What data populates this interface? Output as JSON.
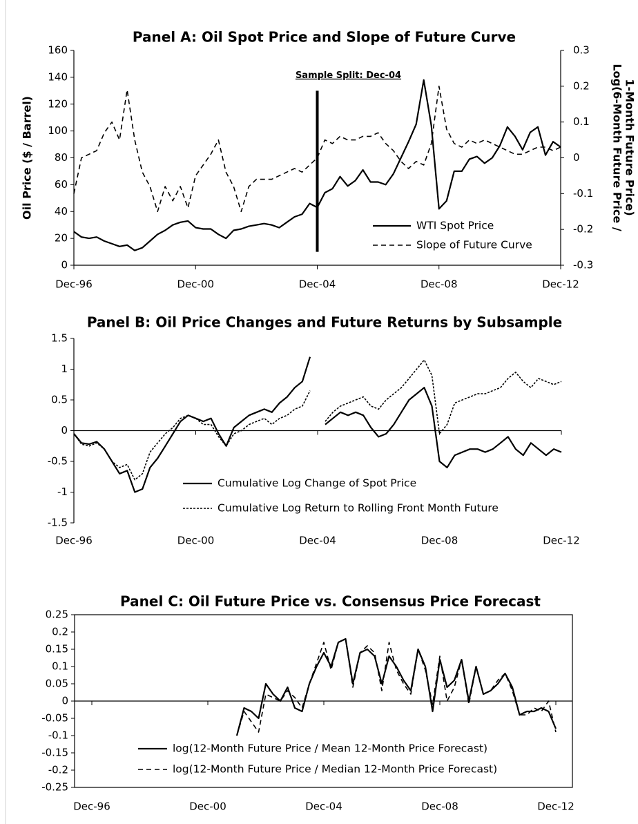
{
  "chart_data": [
    {
      "type": "line",
      "title": "Panel A: Oil Spot Price and Slope of Future Curve",
      "ylabel": "Oil Price ($ / Barrel)",
      "y2label": [
        "Log(6-Month Future Price /",
        "1-Month Future Price)"
      ],
      "categories": [
        "Dec-96",
        null,
        null,
        null,
        null,
        null,
        null,
        null,
        null,
        null,
        null,
        null,
        null,
        null,
        null,
        null,
        "Dec-00",
        null,
        null,
        null,
        null,
        null,
        null,
        null,
        null,
        null,
        null,
        null,
        null,
        null,
        null,
        null,
        "Dec-04",
        null,
        null,
        null,
        null,
        null,
        null,
        null,
        null,
        null,
        null,
        null,
        null,
        null,
        null,
        null,
        "Dec-08",
        null,
        null,
        null,
        null,
        null,
        null,
        null,
        null,
        null,
        null,
        null,
        null,
        null,
        null,
        null,
        "Dec-12"
      ],
      "ylim": [
        0,
        160
      ],
      "yticks": [
        0,
        20,
        40,
        60,
        80,
        100,
        120,
        140,
        160
      ],
      "y2lim": [
        -0.3,
        0.3
      ],
      "y2ticks": [
        -0.3,
        -0.2,
        -0.1,
        0,
        0.1,
        0.2,
        0.3
      ],
      "legend": "lower right",
      "annotation": {
        "text": "Sample Split: Dec-04",
        "at": "Dec-04",
        "from": 10,
        "to": 130
      },
      "series": [
        {
          "name": "WTI Spot Price",
          "color": "#000000",
          "style": "solid",
          "values": [
            25,
            21,
            20,
            21,
            18,
            16,
            14,
            15,
            11,
            13,
            18,
            23,
            26,
            30,
            32,
            33,
            28,
            27,
            27,
            23,
            20,
            26,
            27,
            29,
            30,
            31,
            30,
            28,
            32,
            36,
            38,
            46,
            43,
            54,
            57,
            66,
            59,
            63,
            71,
            62,
            62,
            60,
            68,
            80,
            92,
            105,
            138,
            104,
            42,
            48,
            70,
            70,
            79,
            81,
            76,
            80,
            89,
            103,
            96,
            86,
            99,
            103,
            82,
            92,
            88
          ]
        },
        {
          "name": "Slope of Future Curve",
          "color": "#000000",
          "style": "dashed",
          "axis": "y2",
          "values": [
            -0.1,
            0,
            0.01,
            0.02,
            0.07,
            0.1,
            0.05,
            0.19,
            0.05,
            -0.04,
            -0.08,
            -0.15,
            -0.08,
            -0.12,
            -0.08,
            -0.14,
            -0.05,
            -0.02,
            0.01,
            0.05,
            -0.04,
            -0.08,
            -0.15,
            -0.08,
            -0.06,
            -0.06,
            -0.06,
            -0.05,
            -0.04,
            -0.03,
            -0.04,
            -0.02,
            0,
            0.05,
            0.04,
            0.06,
            0.05,
            0.05,
            0.06,
            0.06,
            0.07,
            0.04,
            0.02,
            -0.01,
            -0.03,
            -0.01,
            -0.02,
            0.04,
            0.2,
            0.08,
            0.04,
            0.03,
            0.05,
            0.04,
            0.05,
            0.04,
            0.03,
            0.02,
            0.01,
            0.01,
            0.02,
            0.03,
            0.03,
            0.02,
            0.03
          ]
        }
      ]
    },
    {
      "type": "line",
      "title": "Panel B: Oil Price Changes and Future Returns by Subsample",
      "categories": [
        "Dec-96",
        null,
        null,
        null,
        null,
        null,
        null,
        null,
        null,
        null,
        null,
        null,
        null,
        null,
        null,
        null,
        "Dec-00",
        null,
        null,
        null,
        null,
        null,
        null,
        null,
        null,
        null,
        null,
        null,
        null,
        null,
        null,
        null,
        "Dec-04",
        null,
        null,
        null,
        null,
        null,
        null,
        null,
        null,
        null,
        null,
        null,
        null,
        null,
        null,
        null,
        "Dec-08",
        null,
        null,
        null,
        null,
        null,
        null,
        null,
        null,
        null,
        null,
        null,
        null,
        null,
        null,
        null,
        "Dec-12"
      ],
      "ylim": [
        -1.5,
        1.5
      ],
      "yticks": [
        -1.5,
        -1,
        -0.5,
        0,
        0.5,
        1,
        1.5
      ],
      "legend": "lower center",
      "series": [
        {
          "name": "Cumulative Log Change of Spot Price",
          "color": "#000000",
          "style": "solid",
          "values": [
            -0.05,
            -0.2,
            -0.22,
            -0.18,
            -0.3,
            -0.5,
            -0.7,
            -0.65,
            -1,
            -0.95,
            -0.6,
            -0.45,
            -0.25,
            -0.05,
            0.15,
            0.25,
            0.2,
            0.15,
            0.2,
            -0.05,
            -0.25,
            0.05,
            0.15,
            0.25,
            0.3,
            0.35,
            0.3,
            0.45,
            0.55,
            0.7,
            0.8,
            1.2,
            null,
            0.1,
            0.2,
            0.3,
            0.25,
            0.3,
            0.25,
            0.05,
            -0.1,
            -0.05,
            0.1,
            0.3,
            0.5,
            0.6,
            0.7,
            0.4,
            -0.5,
            -0.6,
            -0.4,
            -0.35,
            -0.3,
            -0.3,
            -0.35,
            -0.3,
            -0.2,
            -0.1,
            -0.3,
            -0.4,
            -0.2,
            -0.3,
            -0.4,
            -0.3,
            -0.35
          ]
        },
        {
          "name": "Cumulative Log Return to Rolling Front Month Future",
          "color": "#000000",
          "style": "dotted",
          "values": [
            -0.05,
            -0.22,
            -0.25,
            -0.2,
            -0.3,
            -0.5,
            -0.6,
            -0.55,
            -0.8,
            -0.7,
            -0.35,
            -0.2,
            -0.05,
            0.05,
            0.2,
            0.25,
            0.2,
            0.1,
            0.1,
            -0.1,
            -0.25,
            -0.05,
            0,
            0.1,
            0.15,
            0.2,
            0.1,
            0.2,
            0.25,
            0.35,
            0.4,
            0.65,
            null,
            0.15,
            0.3,
            0.4,
            0.45,
            0.5,
            0.55,
            0.4,
            0.35,
            0.5,
            0.6,
            0.7,
            0.85,
            1,
            1.15,
            0.9,
            -0.05,
            0.1,
            0.45,
            0.5,
            0.55,
            0.6,
            0.6,
            0.65,
            0.7,
            0.85,
            0.95,
            0.8,
            0.7,
            0.85,
            0.8,
            0.75,
            0.8
          ]
        }
      ]
    },
    {
      "type": "line",
      "title": "Panel C: Oil Future Price vs. Consensus Price Forecast",
      "categories": [
        "Dec-96",
        null,
        null,
        null,
        null,
        null,
        null,
        null,
        null,
        null,
        null,
        null,
        null,
        null,
        null,
        null,
        "Dec-00",
        null,
        null,
        null,
        null,
        null,
        null,
        null,
        null,
        null,
        null,
        null,
        null,
        null,
        null,
        null,
        "Dec-04",
        null,
        null,
        null,
        null,
        null,
        null,
        null,
        null,
        null,
        null,
        null,
        null,
        null,
        null,
        null,
        "Dec-08",
        null,
        null,
        null,
        null,
        null,
        null,
        null,
        null,
        null,
        null,
        null,
        null,
        null,
        null,
        null,
        "Dec-12"
      ],
      "ylim": [
        -0.25,
        0.25
      ],
      "yticks": [
        -0.25,
        -0.2,
        -0.15,
        -0.1,
        -0.05,
        0,
        0.05,
        0.1,
        0.15,
        0.2,
        0.25
      ],
      "legend": "lower center",
      "border": true,
      "series": [
        {
          "name": "log(12-Month Future Price / Mean 12-Month Price Forecast)",
          "color": "#000000",
          "style": "solid",
          "values": [
            null,
            null,
            null,
            null,
            null,
            null,
            null,
            null,
            null,
            null,
            null,
            null,
            null,
            null,
            null,
            null,
            null,
            null,
            null,
            null,
            -0.1,
            -0.02,
            -0.03,
            -0.05,
            0.05,
            0.02,
            0,
            0.04,
            -0.02,
            -0.03,
            0.05,
            0.1,
            0.14,
            0.1,
            0.17,
            0.18,
            0.05,
            0.14,
            0.15,
            0.13,
            0.05,
            0.13,
            0.1,
            0.06,
            0.03,
            0.15,
            0.1,
            -0.03,
            0.12,
            0.04,
            0.06,
            0.12,
            0,
            0.1,
            0.02,
            0.03,
            0.05,
            0.08,
            0.04,
            -0.04,
            -0.03,
            -0.03,
            -0.02,
            -0.03,
            -0.08
          ]
        },
        {
          "name": "log(12-Month Future Price / Median 12-Month Price Forecast)",
          "color": "#000000",
          "style": "dashed",
          "values": [
            null,
            null,
            null,
            null,
            null,
            null,
            null,
            null,
            null,
            null,
            null,
            null,
            null,
            null,
            null,
            null,
            null,
            null,
            null,
            null,
            -0.1,
            -0.03,
            -0.06,
            -0.09,
            0.02,
            0.01,
            0,
            0.03,
            0.01,
            -0.02,
            0.05,
            0.11,
            0.17,
            0.09,
            0.17,
            0.18,
            0.04,
            0.14,
            0.16,
            0.14,
            0.03,
            0.17,
            0.09,
            0.05,
            0.02,
            0.15,
            0.09,
            -0.01,
            0.13,
            0,
            0.04,
            0.12,
            -0.01,
            0.1,
            0.02,
            0.03,
            0.06,
            0.08,
            0.03,
            -0.04,
            -0.04,
            -0.02,
            -0.03,
            0,
            -0.09
          ]
        }
      ]
    }
  ]
}
